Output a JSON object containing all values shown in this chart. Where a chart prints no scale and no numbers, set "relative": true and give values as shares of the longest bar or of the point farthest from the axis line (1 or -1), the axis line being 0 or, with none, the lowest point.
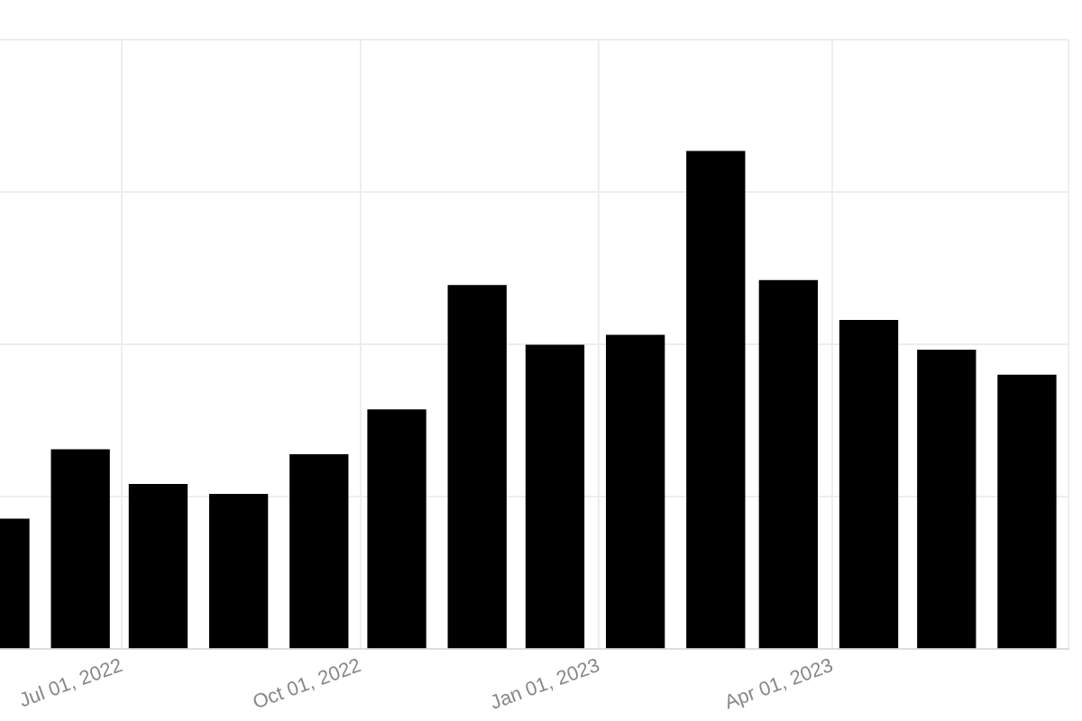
{
  "chart_data": {
    "type": "bar",
    "relative": true,
    "x": [
      "2022-05-15",
      "2022-06-15",
      "2022-07-15",
      "2022-08-15",
      "2022-09-15",
      "2022-10-15",
      "2022-11-15",
      "2022-12-15",
      "2023-01-15",
      "2023-02-15",
      "2023-03-15",
      "2023-04-15",
      "2023-05-15",
      "2023-06-15"
    ],
    "values": [
      0.26,
      0.4,
      0.33,
      0.31,
      0.39,
      0.48,
      0.73,
      0.61,
      0.63,
      1,
      0.74,
      0.66,
      0.6,
      0.55
    ],
    "color": "#000000",
    "xlim": [
      "2022-05-15",
      "2023-07-01"
    ],
    "xticks": [
      {
        "value": "2022-07-01",
        "label": "Jul 01, 2022"
      },
      {
        "value": "2022-10-01",
        "label": "Oct 01, 2022"
      },
      {
        "value": "2023-01-01",
        "label": "Jan 01, 2023"
      },
      {
        "value": "2023-04-01",
        "label": "Apr 01, 2023"
      },
      {
        "value": "2023-07-01",
        "label": null
      }
    ],
    "grid": true,
    "legend": false
  }
}
